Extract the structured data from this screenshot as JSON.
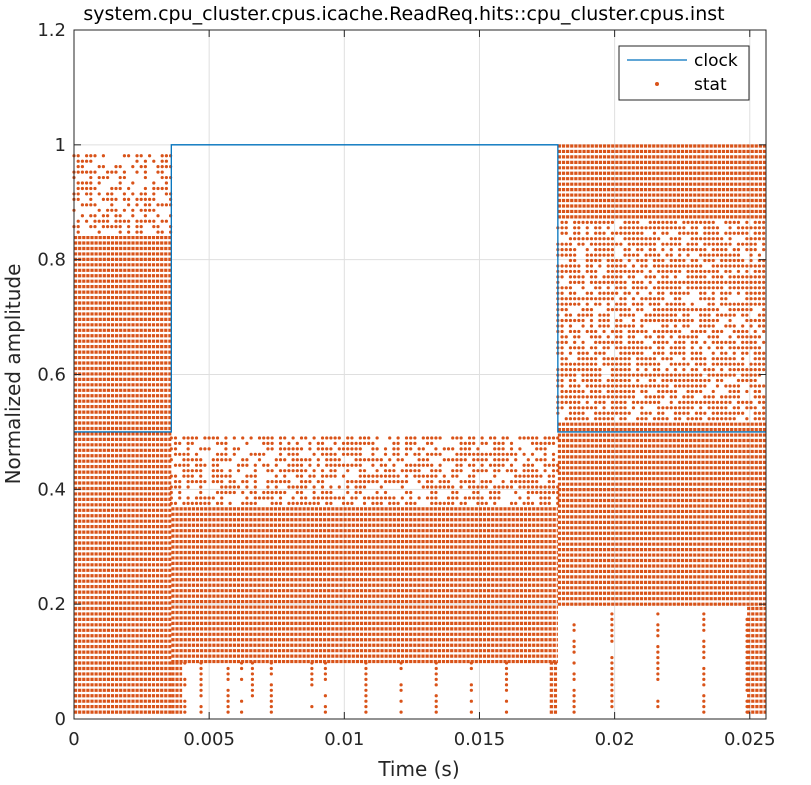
{
  "chart_data": {
    "type": "line",
    "title": "system.cpu_cluster.cpus.icache.ReadReq.hits::cpu_cluster.cpus.inst",
    "xlabel": "Time (s)",
    "ylabel": "Normalized amplitude",
    "xlim": [
      0,
      0.0256
    ],
    "ylim": [
      0,
      1.2
    ],
    "x_ticks": [
      0,
      0.005,
      0.01,
      0.015,
      0.02,
      0.025
    ],
    "x_tick_labels": [
      "0",
      "0.005",
      "0.01",
      "0.015",
      "0.02",
      "0.025"
    ],
    "y_ticks": [
      0,
      0.2,
      0.4,
      0.6,
      0.8,
      1.0,
      1.2
    ],
    "y_tick_labels": [
      "0",
      "0.2",
      "0.4",
      "0.6",
      "0.8",
      "1",
      "1.2"
    ],
    "grid": true,
    "legend": {
      "placement": "top-right",
      "entries": [
        "clock",
        "stat"
      ]
    },
    "series": [
      {
        "name": "clock",
        "style": "line",
        "color": "#0072BD",
        "x": [
          0,
          0.0036,
          0.0036,
          0.0179,
          0.0179,
          0.0256
        ],
        "y": [
          0.5,
          0.5,
          1.0,
          1.0,
          0.5,
          0.5
        ]
      },
      {
        "name": "stat",
        "style": "points",
        "color": "#D95319",
        "description_regions": [
          {
            "x_range": [
              0,
              0.0036
            ],
            "y_range": [
              0.01,
              0.98
            ],
            "level_step": 0.0095,
            "density": "dense-sparse-top"
          },
          {
            "x_range": [
              0.0036,
              0.0179
            ],
            "y_range": [
              0.1,
              0.49
            ],
            "level_step": 0.0095,
            "density": "dense-with-gaps-top"
          },
          {
            "x_range": [
              0.0179,
              0.0256
            ],
            "y_range": [
              0.2,
              1.0
            ],
            "level_step": 0.0095,
            "density": "dense-with-gaps-mid"
          }
        ]
      }
    ]
  }
}
